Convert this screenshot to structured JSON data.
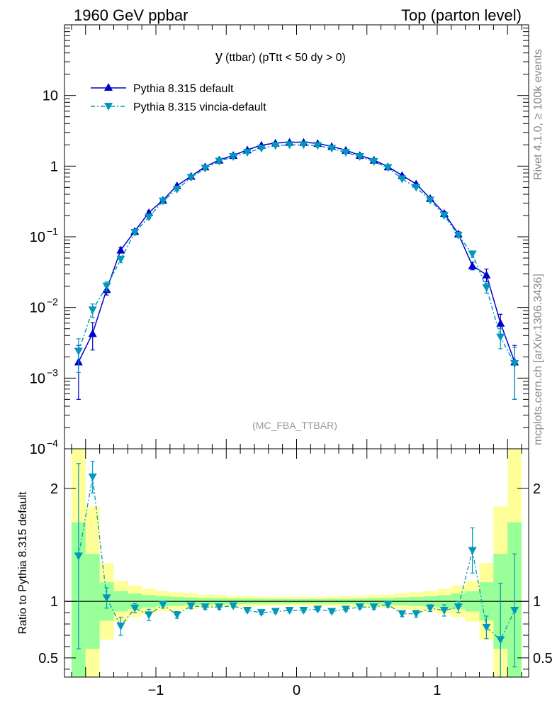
{
  "header": {
    "left_title": "1960 GeV ppbar",
    "right_title": "Top (parton level)"
  },
  "side_labels": {
    "rivet": "Rivet 4.1.0, ≥ 100k events",
    "mcplots": "mcplots.cern.ch [arXiv:1306.3436]"
  },
  "chart_data": [
    {
      "type": "line",
      "title_main": "y",
      "title_rest": "(ttbar) (pTtt < 50 dy > 0)",
      "watermark": "(MC_FBA_TTBAR)",
      "yscale": "log",
      "ylim": [
        0.0001,
        100
      ],
      "xlim": [
        -1.65,
        1.65
      ],
      "y_ticks": [
        {
          "value": 10,
          "label": "10"
        },
        {
          "value": 1,
          "label": "1"
        },
        {
          "value": 0.1,
          "label": "10",
          "exp": "−1"
        },
        {
          "value": 0.01,
          "label": "10",
          "exp": "−2"
        },
        {
          "value": 0.001,
          "label": "10",
          "exp": "−3"
        },
        {
          "value": 0.0001,
          "label": "10",
          "exp": "−4"
        }
      ],
      "legend": [
        "Pythia 8.315 default",
        "Pythia 8.315 vincia-default"
      ],
      "x": [
        -1.55,
        -1.45,
        -1.35,
        -1.25,
        -1.15,
        -1.05,
        -0.95,
        -0.85,
        -0.75,
        -0.65,
        -0.55,
        -0.45,
        -0.35,
        -0.25,
        -0.15,
        -0.05,
        0.05,
        0.15,
        0.25,
        0.35,
        0.45,
        0.55,
        0.65,
        0.75,
        0.85,
        0.95,
        1.05,
        1.15,
        1.25,
        1.35,
        1.45,
        1.55
      ],
      "series": [
        {
          "name": "Pythia 8.315 default",
          "color": "#0000cc",
          "values": [
            0.0017,
            0.0043,
            0.018,
            0.065,
            0.12,
            0.22,
            0.33,
            0.53,
            0.72,
            0.98,
            1.22,
            1.42,
            1.7,
            1.98,
            2.12,
            2.18,
            2.18,
            2.1,
            1.9,
            1.68,
            1.42,
            1.22,
            0.98,
            0.74,
            0.56,
            0.35,
            0.215,
            0.11,
            0.039,
            0.029,
            0.006,
            0.0017
          ],
          "errors": [
            0.0012,
            0.0018,
            0.003,
            0.006,
            0.008,
            0.012,
            0.015,
            0.02,
            0.022,
            0.025,
            0.028,
            0.03,
            0.032,
            0.035,
            0.037,
            0.038,
            0.038,
            0.037,
            0.035,
            0.032,
            0.03,
            0.028,
            0.025,
            0.022,
            0.02,
            0.015,
            0.012,
            0.008,
            0.005,
            0.006,
            0.002,
            0.0012
          ]
        },
        {
          "name": "Pythia 8.315 vincia-default",
          "color": "#0099bb",
          "values": [
            0.0024,
            0.0092,
            0.02,
            0.048,
            0.115,
            0.19,
            0.32,
            0.47,
            0.69,
            0.93,
            1.17,
            1.36,
            1.56,
            1.78,
            1.95,
            2.0,
            2.0,
            1.95,
            1.78,
            1.56,
            1.36,
            1.16,
            0.95,
            0.66,
            0.5,
            0.33,
            0.2,
            0.105,
            0.057,
            0.019,
            0.0038,
            0.0016
          ],
          "errors": [
            0.0012,
            0.002,
            0.003,
            0.005,
            0.008,
            0.01,
            0.014,
            0.018,
            0.022,
            0.025,
            0.028,
            0.03,
            0.032,
            0.035,
            0.036,
            0.037,
            0.037,
            0.036,
            0.035,
            0.032,
            0.03,
            0.028,
            0.025,
            0.02,
            0.018,
            0.014,
            0.01,
            0.007,
            0.006,
            0.003,
            0.0012,
            0.0011
          ]
        }
      ]
    },
    {
      "type": "line",
      "ylabel": "Ratio to Pythia 8.315 default",
      "ylim": [
        0.33,
        2.35
      ],
      "xlim": [
        -1.65,
        1.65
      ],
      "y_ticks": [
        {
          "value": 2,
          "label": "2"
        },
        {
          "value": 1,
          "label": "1"
        },
        {
          "value": 0.5,
          "label": "0.5"
        }
      ],
      "x_ticks": [
        {
          "value": -1,
          "label": "−1"
        },
        {
          "value": 0,
          "label": "0"
        },
        {
          "value": 1,
          "label": "1"
        }
      ],
      "band_colors": {
        "inner": "#99ff99",
        "outer": "#ffff99"
      },
      "band_x_edges": [
        -1.6,
        -1.5,
        -1.4,
        -1.3,
        -1.2,
        -1.1,
        -1.0,
        -0.9,
        -0.8,
        -0.7,
        -0.6,
        -0.5,
        -0.4,
        -0.3,
        -0.2,
        -0.1,
        0.0,
        0.1,
        0.2,
        0.3,
        0.4,
        0.5,
        0.6,
        0.7,
        0.8,
        0.9,
        1.0,
        1.1,
        1.2,
        1.3,
        1.4,
        1.5,
        1.6
      ],
      "band_inner": [
        0.7,
        0.42,
        0.17,
        0.09,
        0.07,
        0.055,
        0.045,
        0.04,
        0.035,
        0.03,
        0.028,
        0.025,
        0.023,
        0.021,
        0.02,
        0.02,
        0.02,
        0.02,
        0.021,
        0.023,
        0.025,
        0.028,
        0.03,
        0.035,
        0.04,
        0.045,
        0.055,
        0.07,
        0.09,
        0.17,
        0.42,
        0.7
      ],
      "band_outer": [
        1.4,
        0.84,
        0.34,
        0.18,
        0.14,
        0.11,
        0.09,
        0.08,
        0.07,
        0.06,
        0.056,
        0.05,
        0.046,
        0.042,
        0.04,
        0.04,
        0.04,
        0.04,
        0.042,
        0.046,
        0.05,
        0.056,
        0.06,
        0.07,
        0.08,
        0.09,
        0.11,
        0.14,
        0.18,
        0.34,
        0.84,
        1.4
      ],
      "series": [
        {
          "name": "Pythia 8.315 vincia-default / default",
          "color": "#0099bb",
          "values": [
            1.4,
            2.1,
            1.03,
            0.78,
            0.94,
            0.88,
            0.97,
            0.88,
            0.96,
            0.95,
            0.95,
            0.96,
            0.92,
            0.9,
            0.91,
            0.92,
            0.92,
            0.93,
            0.91,
            0.93,
            0.95,
            0.95,
            0.97,
            0.89,
            0.89,
            0.94,
            0.92,
            0.95,
            1.45,
            0.77,
            0.66,
            0.92
          ],
          "errors": [
            0.82,
            0.14,
            0.09,
            0.08,
            0.04,
            0.05,
            0.03,
            0.03,
            0.025,
            0.02,
            0.02,
            0.015,
            0.015,
            0.015,
            0.015,
            0.015,
            0.015,
            0.015,
            0.015,
            0.015,
            0.015,
            0.02,
            0.02,
            0.025,
            0.03,
            0.03,
            0.05,
            0.05,
            0.2,
            0.1,
            0.5,
            0.5
          ]
        }
      ]
    }
  ]
}
